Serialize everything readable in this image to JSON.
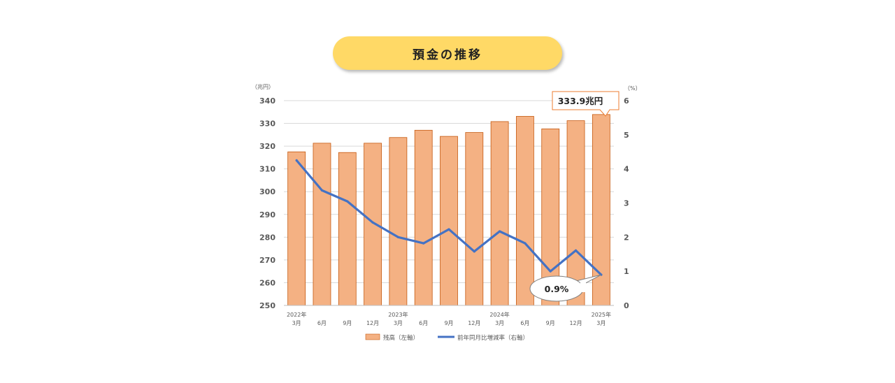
{
  "title": "預金の推移",
  "chart_data": {
    "type": "bar+line",
    "categories": [
      [
        "2022年",
        "3月"
      ],
      [
        "",
        "6月"
      ],
      [
        "",
        "9月"
      ],
      [
        "",
        "12月"
      ],
      [
        "2023年",
        "3月"
      ],
      [
        "",
        "6月"
      ],
      [
        "",
        "9月"
      ],
      [
        "",
        "12月"
      ],
      [
        "2024年",
        "3月"
      ],
      [
        "",
        "6月"
      ],
      [
        "",
        "9月"
      ],
      [
        "",
        "12月"
      ],
      [
        "2025年",
        "3月"
      ]
    ],
    "series": [
      {
        "name": "残高（左軸）",
        "type": "bar",
        "axis": "left",
        "color": "#f4b183",
        "values": [
          317.5,
          321.3,
          317.2,
          321.3,
          323.8,
          327.0,
          324.3,
          326.0,
          330.8,
          333.1,
          327.6,
          331.2,
          333.9
        ]
      },
      {
        "name": "前年同月比増減率（右軸）",
        "type": "line",
        "axis": "right",
        "color": "#4472c4",
        "values": [
          4.25,
          3.37,
          3.05,
          2.43,
          2.0,
          1.82,
          2.23,
          1.58,
          2.17,
          1.82,
          1.0,
          1.61,
          0.9
        ]
      }
    ],
    "y_left": {
      "unit": "（兆円）",
      "min": 250,
      "max": 340,
      "ticks": [
        340,
        330,
        320,
        310,
        300,
        290,
        280,
        270,
        260,
        250
      ]
    },
    "y_right": {
      "unit": "（%）",
      "min": 0,
      "max": 6,
      "ticks": [
        6,
        5,
        4,
        3,
        2,
        1,
        0
      ]
    },
    "callouts": {
      "bar_last": "333.9兆円",
      "line_last": "0.9%"
    },
    "legend": [
      "残高（左軸）",
      "前年同月比増減率（右軸）"
    ],
    "grid": true,
    "legend_position": "bottom"
  }
}
